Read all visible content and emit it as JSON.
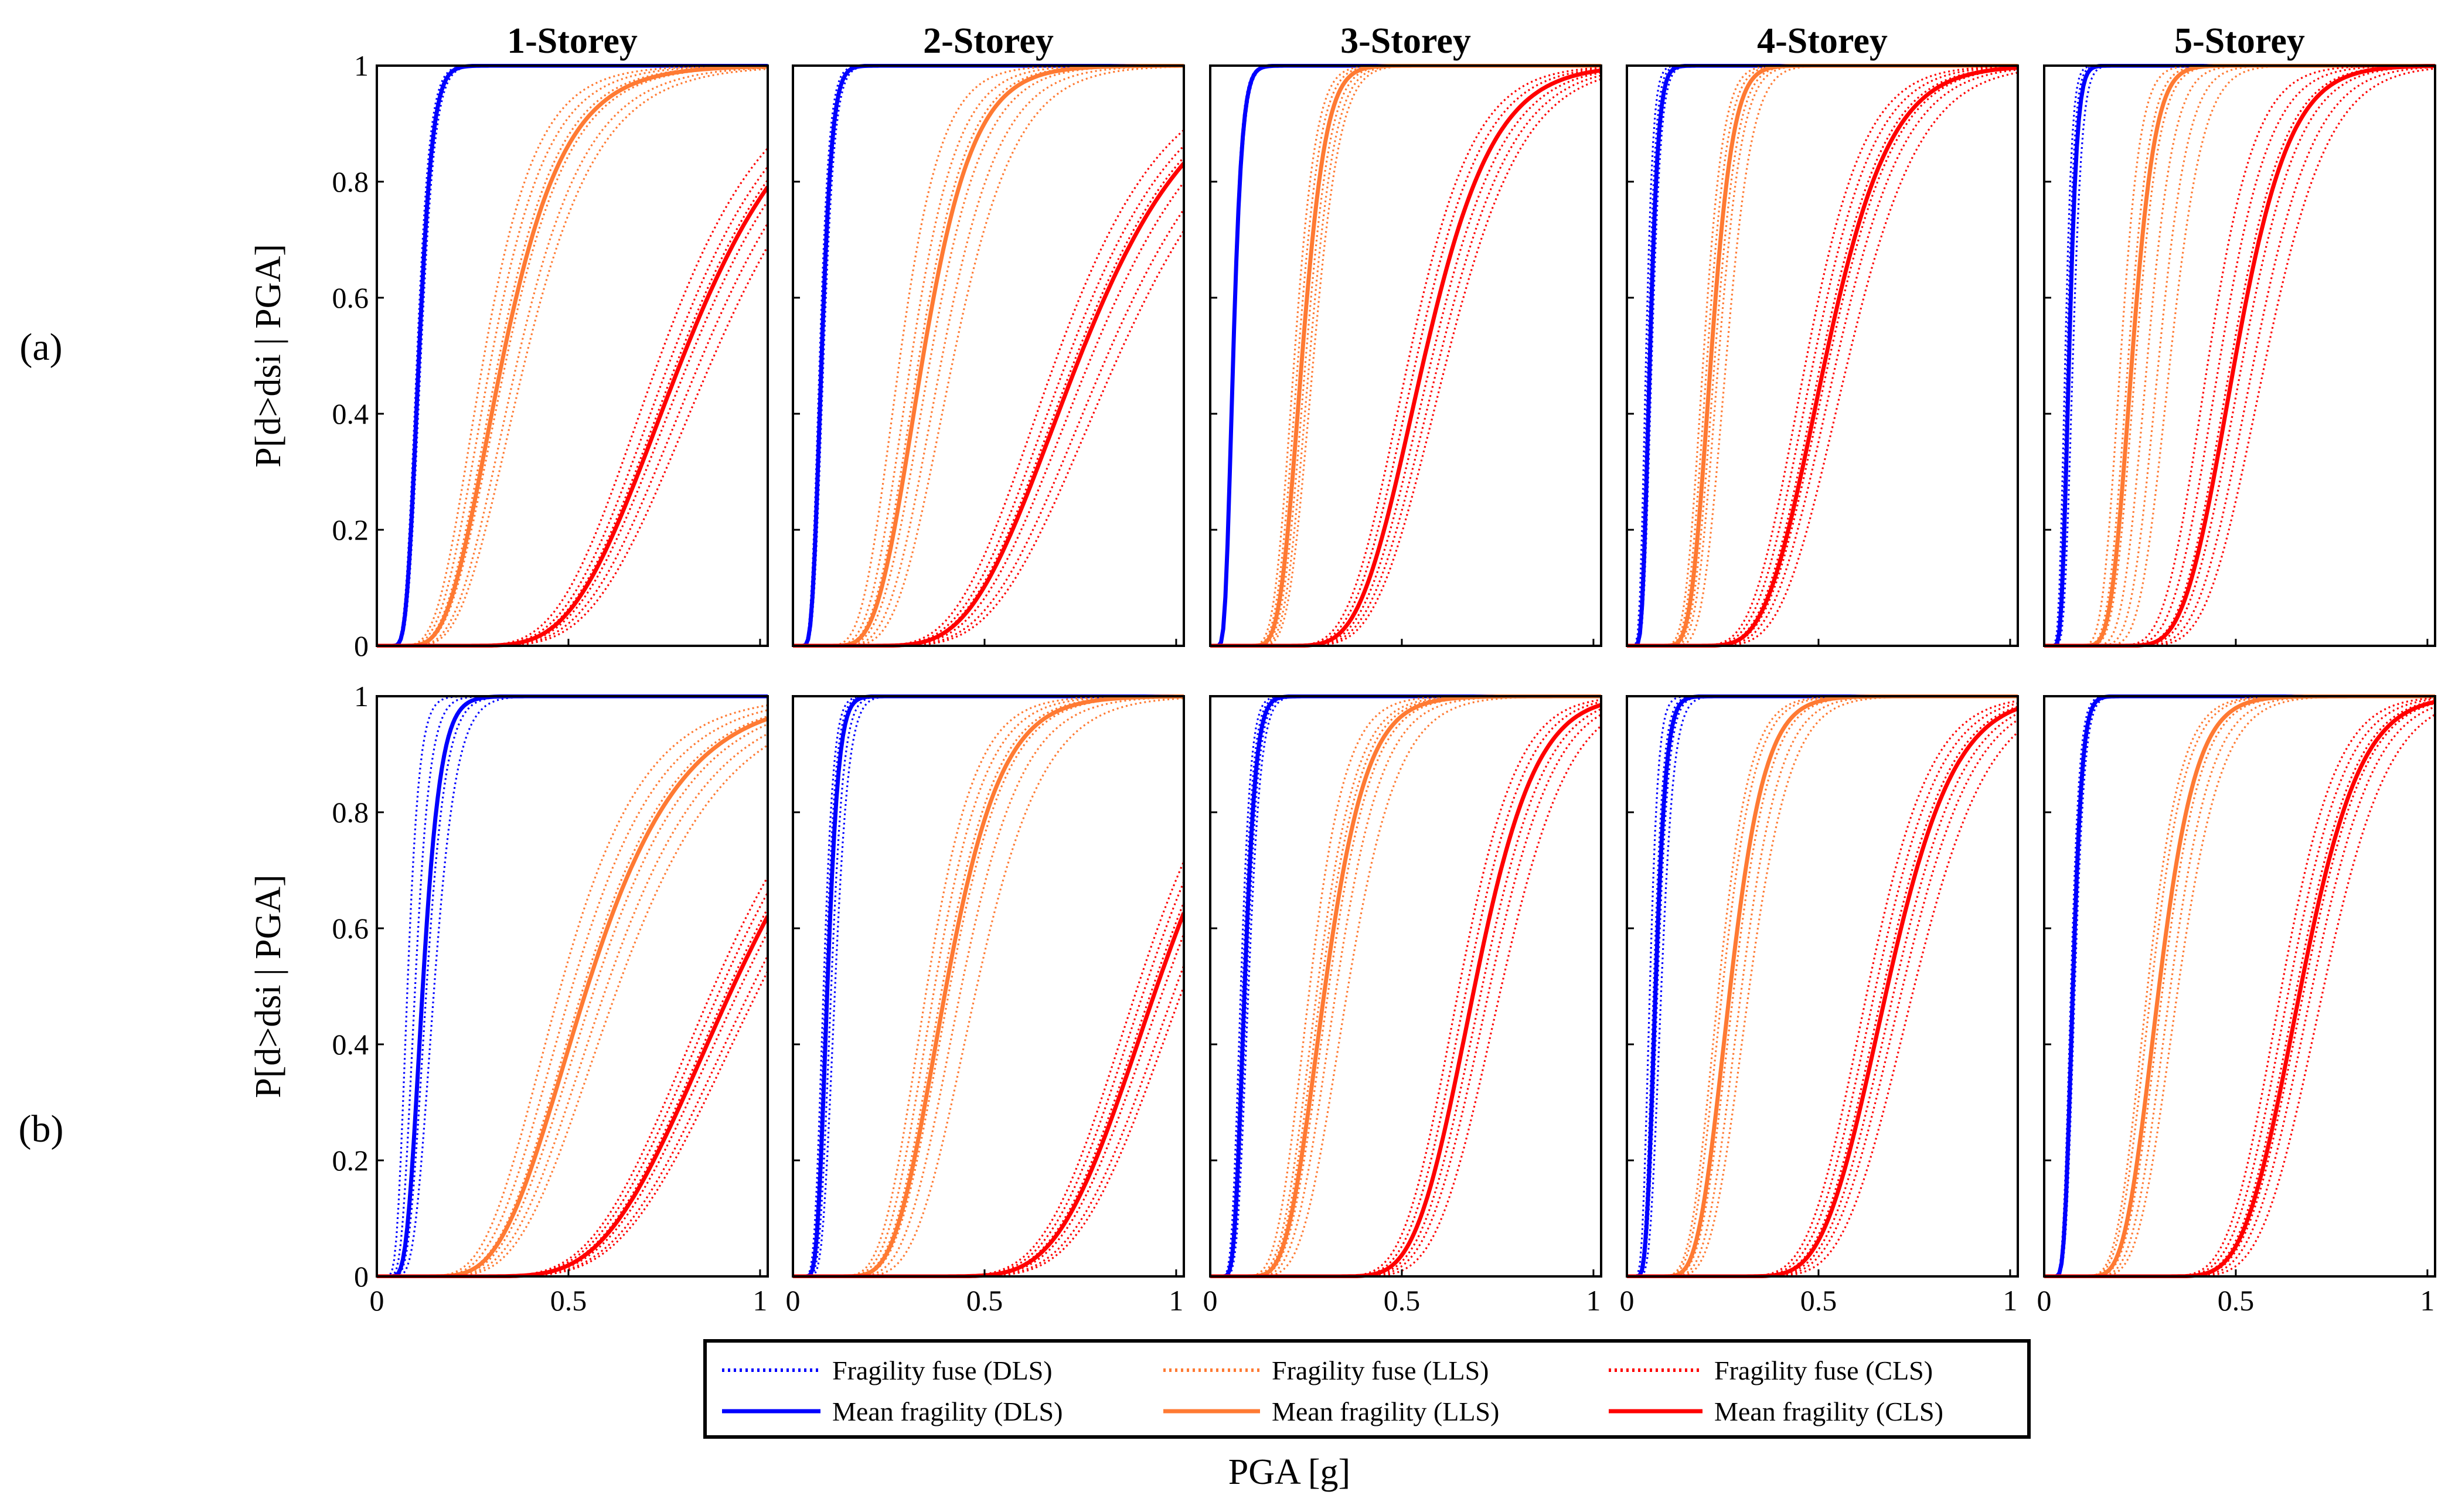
{
  "figure": {
    "row_labels": [
      "(a)",
      "(b)"
    ],
    "ylabel": "P[d>dsi | PGA]",
    "xlabel": "PGA [g]"
  },
  "legend": {
    "entries": [
      {
        "label": "Fragility fuse (DLS)",
        "style": "dotted",
        "color": "#0000ff"
      },
      {
        "label": "Fragility fuse (LLS)",
        "style": "dotted",
        "color": "#ff7a33"
      },
      {
        "label": "Fragility fuse (CLS)",
        "style": "dotted",
        "color": "#ff0000"
      },
      {
        "label": "Mean fragility (DLS)",
        "style": "solid",
        "color": "#0000ff"
      },
      {
        "label": "Mean fragility (LLS)",
        "style": "solid",
        "color": "#ff7a33"
      },
      {
        "label": "Mean fragility (CLS)",
        "style": "solid",
        "color": "#ff0000"
      }
    ]
  },
  "colors": {
    "DLS": "#0000ff",
    "LLS": "#ff7a33",
    "CLS": "#ff0000"
  },
  "chart_data": [
    {
      "type": "line",
      "row": "(a)",
      "title": "1-Storey",
      "xlim": [
        0,
        1.02
      ],
      "ylim": [
        0,
        1
      ],
      "xticks": [
        0,
        0.5,
        1
      ],
      "yticks": [
        0,
        0.2,
        0.4,
        0.6,
        0.8,
        1
      ],
      "series": [
        {
          "state": "DLS",
          "median_pga": 0.11,
          "dispersion": 0.25,
          "fuse_medians": [
            0.105,
            0.11,
            0.115
          ]
        },
        {
          "state": "LLS",
          "median_pga": 0.33,
          "dispersion": 0.38,
          "fuse_medians": [
            0.28,
            0.3,
            0.32,
            0.34,
            0.37,
            0.39
          ]
        },
        {
          "state": "CLS",
          "median_pga": 0.8,
          "dispersion": 0.3,
          "fuse_medians": [
            0.74,
            0.77,
            0.79,
            0.82,
            0.85,
            0.88
          ]
        }
      ]
    },
    {
      "type": "line",
      "row": "(a)",
      "title": "2-Storey",
      "xlim": [
        0,
        1.02
      ],
      "ylim": [
        0,
        1
      ],
      "xticks": [
        0,
        0.5,
        1
      ],
      "yticks": [
        0,
        0.2,
        0.4,
        0.6,
        0.8,
        1
      ],
      "series": [
        {
          "state": "DLS",
          "median_pga": 0.075,
          "dispersion": 0.28,
          "fuse_medians": [
            0.07,
            0.075,
            0.08
          ]
        },
        {
          "state": "LLS",
          "median_pga": 0.34,
          "dispersion": 0.3,
          "fuse_medians": [
            0.28,
            0.31,
            0.33,
            0.36,
            0.39,
            0.42
          ]
        },
        {
          "state": "CLS",
          "median_pga": 0.75,
          "dispersion": 0.32,
          "fuse_medians": [
            0.69,
            0.72,
            0.74,
            0.78,
            0.82,
            0.85
          ]
        }
      ]
    },
    {
      "type": "line",
      "row": "(a)",
      "title": "3-Storey",
      "xlim": [
        0,
        1.02
      ],
      "ylim": [
        0,
        1
      ],
      "xticks": [
        0,
        0.5,
        1
      ],
      "yticks": [
        0,
        0.2,
        0.4,
        0.6,
        0.8,
        1
      ],
      "series": [
        {
          "state": "DLS",
          "median_pga": 0.06,
          "dispersion": 0.3,
          "fuse_medians": [
            0.058,
            0.06,
            0.062
          ]
        },
        {
          "state": "LLS",
          "median_pga": 0.24,
          "dispersion": 0.2,
          "fuse_medians": [
            0.22,
            0.23,
            0.24,
            0.25,
            0.26,
            0.27
          ]
        },
        {
          "state": "CLS",
          "median_pga": 0.56,
          "dispersion": 0.25,
          "fuse_medians": [
            0.52,
            0.54,
            0.56,
            0.58,
            0.6,
            0.62
          ]
        }
      ]
    },
    {
      "type": "line",
      "row": "(a)",
      "title": "4-Storey",
      "xlim": [
        0,
        1.02
      ],
      "ylim": [
        0,
        1
      ],
      "xticks": [
        0,
        0.5,
        1
      ],
      "yticks": [
        0,
        0.2,
        0.4,
        0.6,
        0.8,
        1
      ],
      "series": [
        {
          "state": "DLS",
          "median_pga": 0.06,
          "dispersion": 0.28,
          "fuse_medians": [
            0.05,
            0.055,
            0.06,
            0.065
          ]
        },
        {
          "state": "LLS",
          "median_pga": 0.22,
          "dispersion": 0.2,
          "fuse_medians": [
            0.2,
            0.21,
            0.22,
            0.23,
            0.24,
            0.26
          ]
        },
        {
          "state": "CLS",
          "median_pga": 0.52,
          "dispersion": 0.25,
          "fuse_medians": [
            0.47,
            0.49,
            0.51,
            0.53,
            0.55,
            0.58
          ]
        }
      ]
    },
    {
      "type": "line",
      "row": "(a)",
      "title": "5-Storey",
      "xlim": [
        0,
        1.02
      ],
      "ylim": [
        0,
        1
      ],
      "xticks": [
        0,
        0.5,
        1
      ],
      "yticks": [
        0,
        0.2,
        0.4,
        0.6,
        0.8,
        1
      ],
      "series": [
        {
          "state": "DLS",
          "median_pga": 0.065,
          "dispersion": 0.25,
          "fuse_medians": [
            0.055,
            0.06,
            0.065,
            0.075
          ]
        },
        {
          "state": "LLS",
          "median_pga": 0.23,
          "dispersion": 0.2,
          "fuse_medians": [
            0.2,
            0.22,
            0.24,
            0.27,
            0.3,
            0.33
          ]
        },
        {
          "state": "CLS",
          "median_pga": 0.5,
          "dispersion": 0.22,
          "fuse_medians": [
            0.43,
            0.46,
            0.49,
            0.52,
            0.55,
            0.58
          ]
        }
      ]
    },
    {
      "type": "line",
      "row": "(b)",
      "title": "1-Storey",
      "xlim": [
        0,
        1.02
      ],
      "ylim": [
        0,
        1
      ],
      "xticks": [
        0,
        0.5,
        1
      ],
      "yticks": [
        0,
        0.2,
        0.4,
        0.6,
        0.8,
        1
      ],
      "series": [
        {
          "state": "DLS",
          "median_pga": 0.12,
          "dispersion": 0.3,
          "fuse_medians": [
            0.08,
            0.1,
            0.12,
            0.13,
            0.15
          ]
        },
        {
          "state": "LLS",
          "median_pga": 0.55,
          "dispersion": 0.35,
          "fuse_medians": [
            0.48,
            0.51,
            0.54,
            0.57,
            0.6,
            0.63
          ]
        },
        {
          "state": "CLS",
          "median_pga": 0.93,
          "dispersion": 0.3,
          "fuse_medians": [
            0.88,
            0.9,
            0.92,
            0.95,
            0.98,
            1.0
          ]
        }
      ]
    },
    {
      "type": "line",
      "row": "(b)",
      "title": "2-Storey",
      "xlim": [
        0,
        1.02
      ],
      "ylim": [
        0,
        1
      ],
      "xticks": [
        0,
        0.5,
        1
      ],
      "yticks": [
        0,
        0.2,
        0.4,
        0.6,
        0.8,
        1
      ],
      "series": [
        {
          "state": "DLS",
          "median_pga": 0.09,
          "dispersion": 0.25,
          "fuse_medians": [
            0.08,
            0.085,
            0.09,
            0.1,
            0.11
          ]
        },
        {
          "state": "LLS",
          "median_pga": 0.4,
          "dispersion": 0.28,
          "fuse_medians": [
            0.35,
            0.37,
            0.39,
            0.41,
            0.44,
            0.48
          ]
        },
        {
          "state": "CLS",
          "median_pga": 0.95,
          "dispersion": 0.22,
          "fuse_medians": [
            0.9,
            0.92,
            0.94,
            0.97,
            1.0,
            1.02
          ]
        }
      ]
    },
    {
      "type": "line",
      "row": "(b)",
      "title": "3-Storey",
      "xlim": [
        0,
        1.02
      ],
      "ylim": [
        0,
        1
      ],
      "xticks": [
        0,
        0.5,
        1
      ],
      "yticks": [
        0,
        0.2,
        0.4,
        0.6,
        0.8,
        1
      ],
      "series": [
        {
          "state": "DLS",
          "median_pga": 0.09,
          "dispersion": 0.25,
          "fuse_medians": [
            0.08,
            0.085,
            0.09,
            0.095,
            0.1
          ]
        },
        {
          "state": "LLS",
          "median_pga": 0.3,
          "dispersion": 0.28,
          "fuse_medians": [
            0.26,
            0.28,
            0.29,
            0.31,
            0.33,
            0.36
          ]
        },
        {
          "state": "CLS",
          "median_pga": 0.69,
          "dispersion": 0.18,
          "fuse_medians": [
            0.65,
            0.67,
            0.69,
            0.71,
            0.73,
            0.76
          ]
        }
      ]
    },
    {
      "type": "line",
      "row": "(b)",
      "title": "4-Storey",
      "xlim": [
        0,
        1.02
      ],
      "ylim": [
        0,
        1
      ],
      "xticks": [
        0,
        0.5,
        1
      ],
      "yticks": [
        0,
        0.2,
        0.4,
        0.6,
        0.8,
        1
      ],
      "series": [
        {
          "state": "DLS",
          "median_pga": 0.075,
          "dispersion": 0.28,
          "fuse_medians": [
            0.06,
            0.07,
            0.075,
            0.08,
            0.09
          ]
        },
        {
          "state": "LLS",
          "median_pga": 0.27,
          "dispersion": 0.26,
          "fuse_medians": [
            0.24,
            0.25,
            0.27,
            0.28,
            0.3,
            0.32
          ]
        },
        {
          "state": "CLS",
          "median_pga": 0.68,
          "dispersion": 0.2,
          "fuse_medians": [
            0.63,
            0.65,
            0.67,
            0.7,
            0.72,
            0.75
          ]
        }
      ]
    },
    {
      "type": "line",
      "row": "(b)",
      "title": "5-Storey",
      "xlim": [
        0,
        1.02
      ],
      "ylim": [
        0,
        1
      ],
      "xticks": [
        0,
        0.5,
        1
      ],
      "yticks": [
        0,
        0.2,
        0.4,
        0.6,
        0.8,
        1
      ],
      "series": [
        {
          "state": "DLS",
          "median_pga": 0.075,
          "dispersion": 0.25,
          "fuse_medians": [
            0.07,
            0.075,
            0.08
          ]
        },
        {
          "state": "LLS",
          "median_pga": 0.3,
          "dispersion": 0.25,
          "fuse_medians": [
            0.27,
            0.28,
            0.3,
            0.31,
            0.33,
            0.35
          ]
        },
        {
          "state": "CLS",
          "median_pga": 0.67,
          "dispersion": 0.18,
          "fuse_medians": [
            0.62,
            0.64,
            0.66,
            0.68,
            0.7,
            0.73
          ]
        }
      ]
    }
  ]
}
